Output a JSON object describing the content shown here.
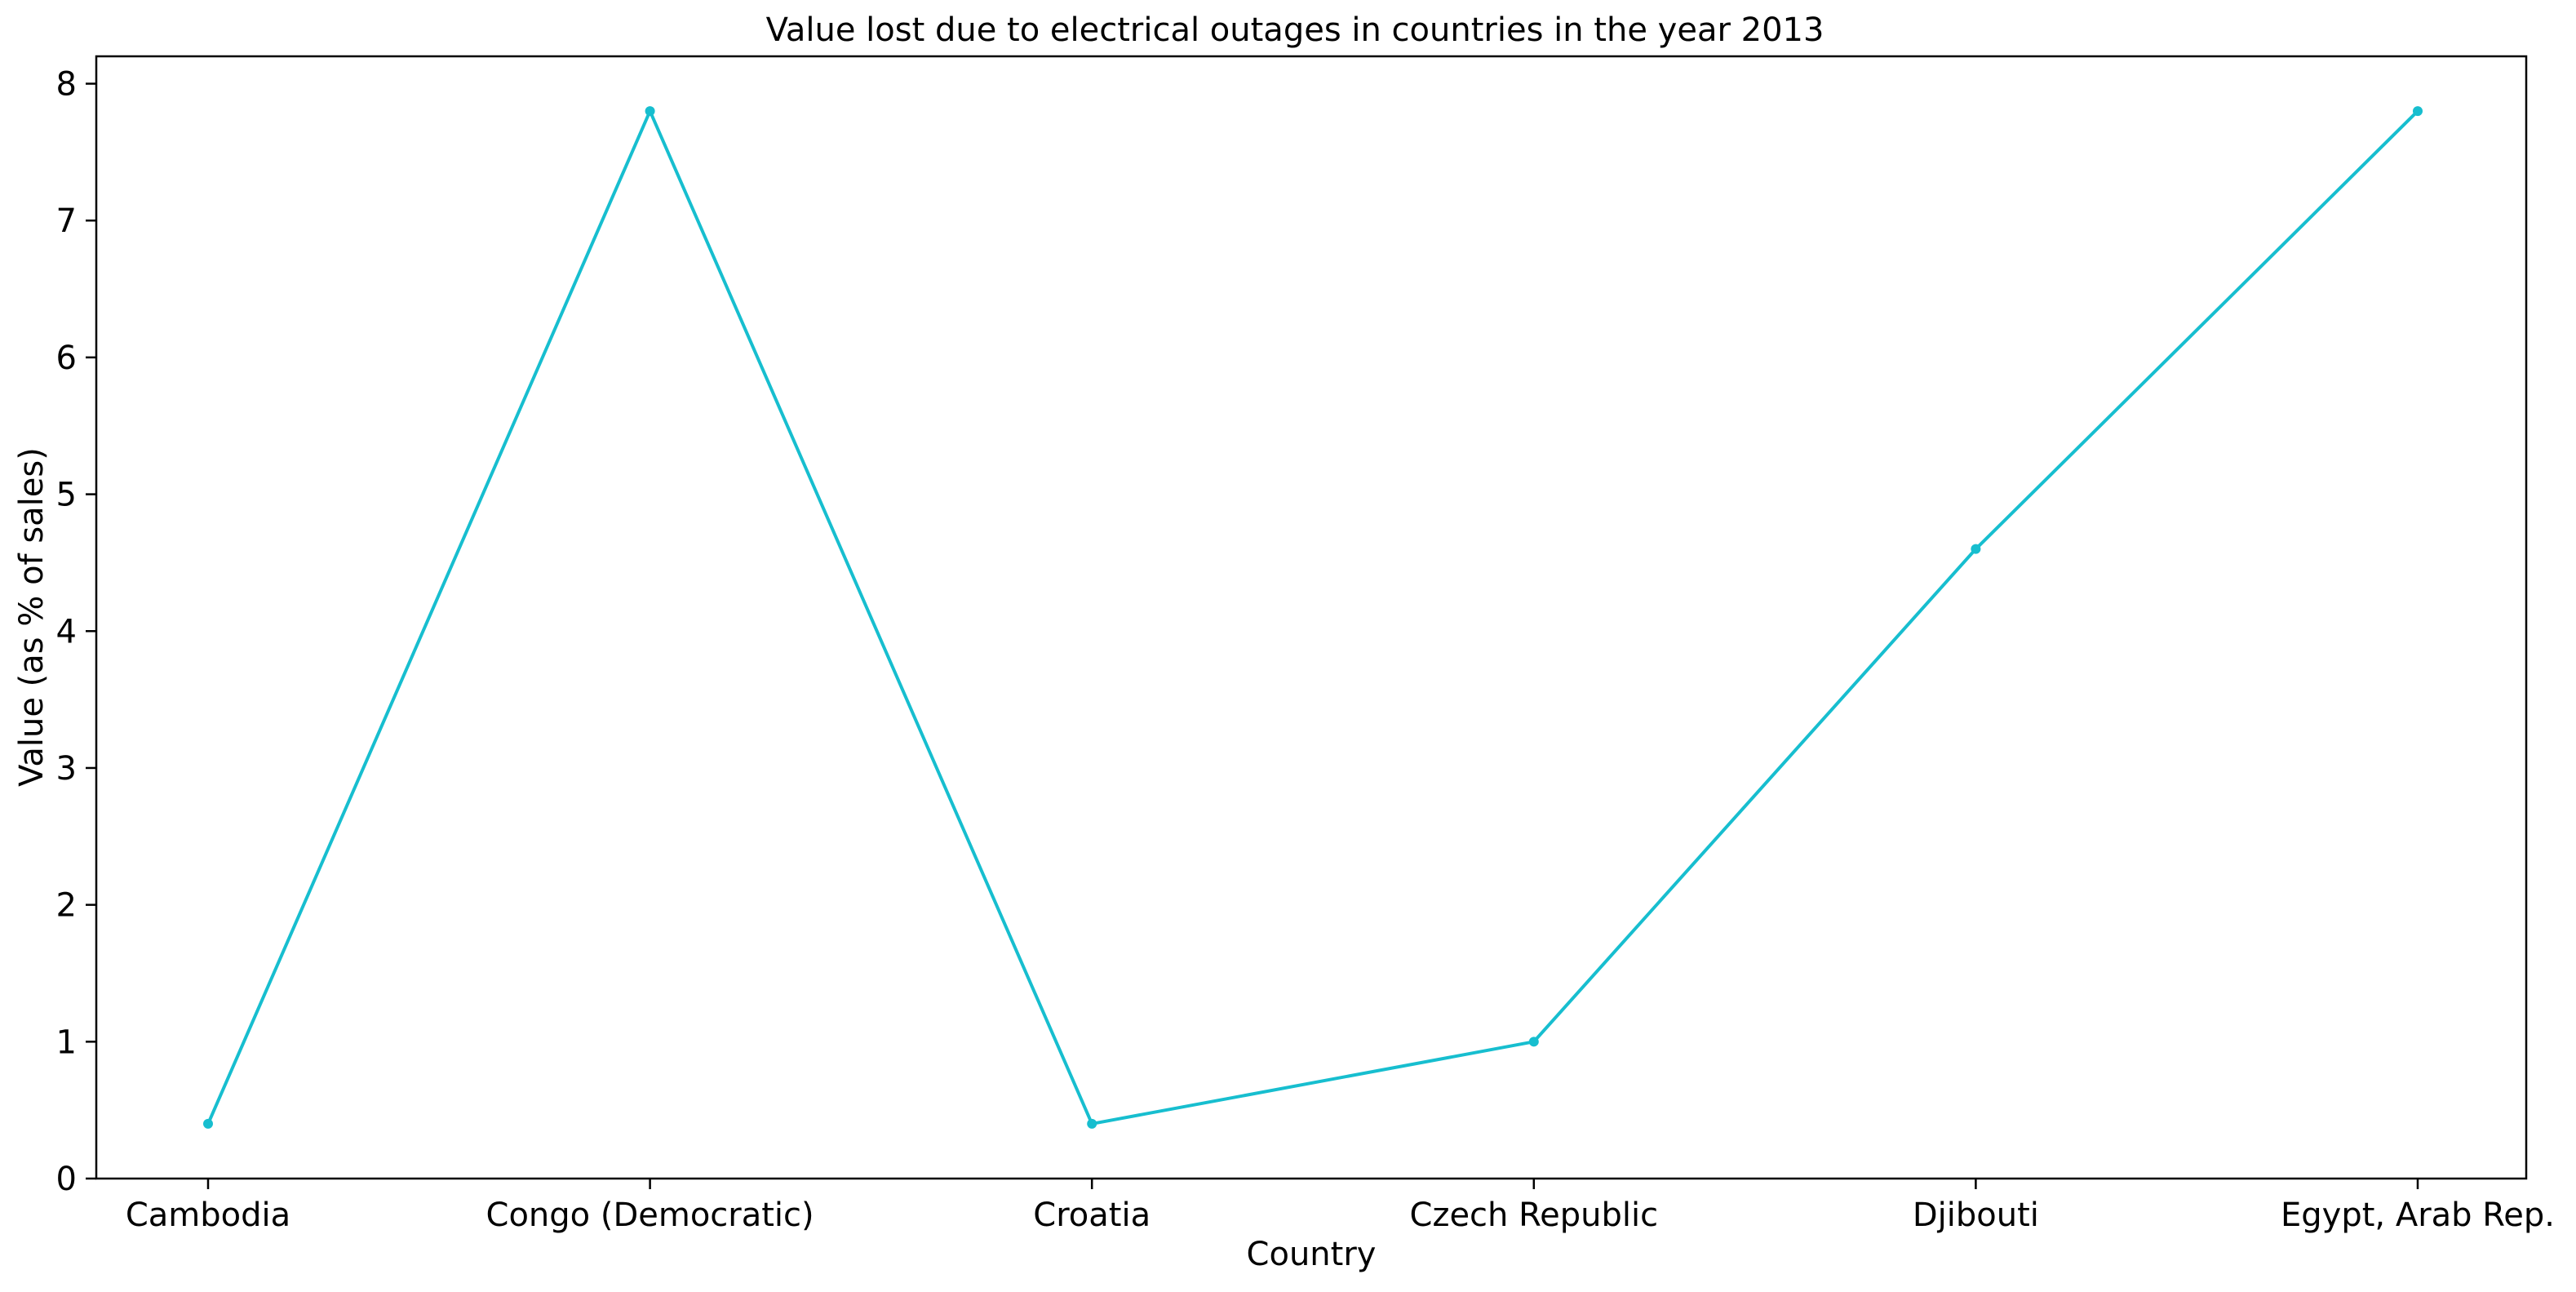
{
  "chart_data": {
    "type": "line",
    "title": "Value lost due to electrical outages in countries in the year 2013",
    "xlabel": "Country",
    "ylabel": "Value (as % of sales)",
    "categories": [
      "Cambodia",
      "Congo (Democratic)",
      "Croatia",
      "Czech Republic",
      "Djibouti",
      "Egypt, Arab Rep."
    ],
    "values": [
      0.4,
      7.8,
      0.4,
      1.0,
      4.6,
      7.8
    ],
    "ylim": [
      0,
      8.2
    ],
    "yticks": [
      0,
      1,
      2,
      3,
      4,
      5,
      6,
      7,
      8
    ],
    "grid": false,
    "legend": "none",
    "color": "#17becf"
  }
}
